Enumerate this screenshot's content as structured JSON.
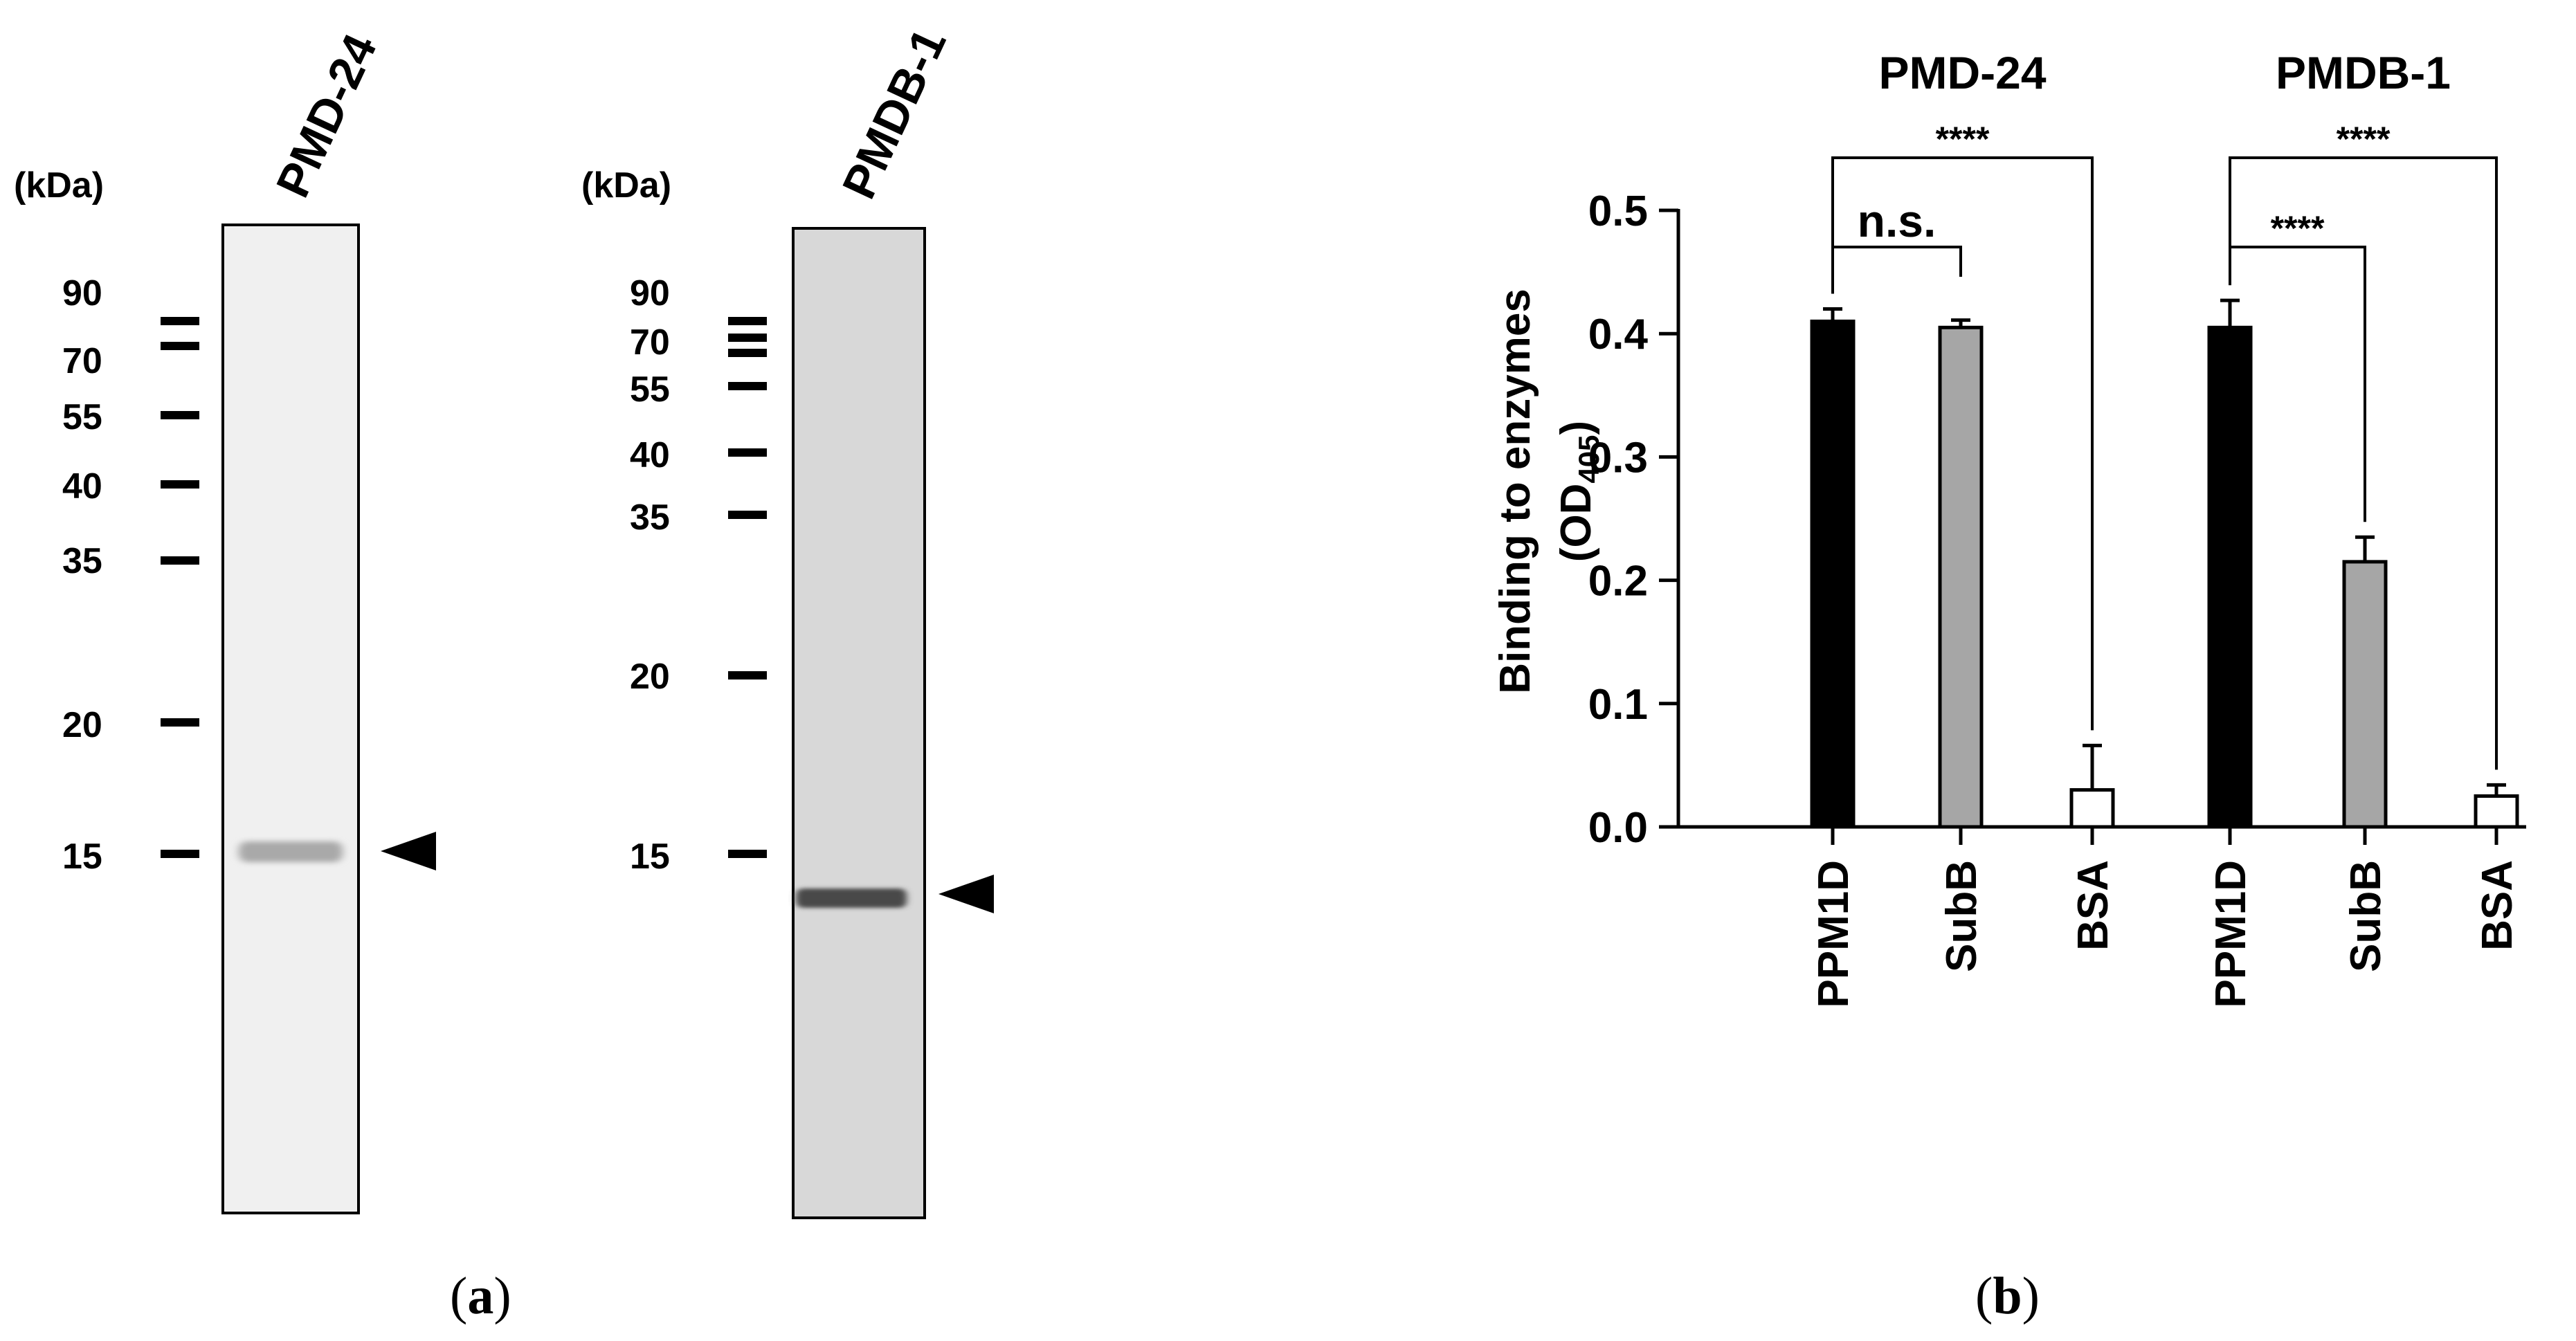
{
  "panel_a": {
    "caption_open": "(",
    "caption_letter": "a",
    "caption_close": ")",
    "gels": [
      {
        "lane_label": "PMD-24",
        "kda_label": "(kDa)",
        "markers": [
          "90",
          "70",
          "55",
          "40",
          "35",
          "20",
          "15"
        ],
        "band_color": "#a9a9a9",
        "background": "#f0f0f0"
      },
      {
        "lane_label": "PMDB-1",
        "kda_label": "(kDa)",
        "markers": [
          "90",
          "70",
          "55",
          "40",
          "35",
          "20",
          "15"
        ],
        "band_color": "#4a4a4a",
        "background": "#d8d8d8"
      }
    ]
  },
  "panel_b": {
    "caption_open": "(",
    "caption_letter": "b",
    "caption_close": ")"
  },
  "chart_data": {
    "type": "bar",
    "ylabel_main": "Binding to enzymes",
    "ylabel_unit_open": "(OD",
    "ylabel_unit_sub": "405",
    "ylabel_unit_close": ")",
    "ylim": [
      0,
      0.5
    ],
    "yticks": [
      "0.0",
      "0.1",
      "0.2",
      "0.3",
      "0.4",
      "0.5"
    ],
    "groups": [
      {
        "title": "PMD-24",
        "categories": [
          "PPM1D",
          "SubB",
          "BSA"
        ],
        "values": [
          0.41,
          0.405,
          0.03
        ],
        "errors": [
          0.01,
          0.006,
          0.036
        ],
        "colors": [
          "#000000",
          "#a6a6a6",
          "#ffffff"
        ],
        "significance": [
          {
            "label": "n.s.",
            "from": 0,
            "to": 1
          },
          {
            "label": "****",
            "from": 0,
            "to": 2
          }
        ]
      },
      {
        "title": "PMDB-1",
        "categories": [
          "PPM1D",
          "SubB",
          "BSA"
        ],
        "values": [
          0.405,
          0.215,
          0.025
        ],
        "errors": [
          0.022,
          0.02,
          0.009
        ],
        "colors": [
          "#000000",
          "#a6a6a6",
          "#ffffff"
        ],
        "significance": [
          {
            "label": "****",
            "from": 0,
            "to": 1
          },
          {
            "label": "****",
            "from": 0,
            "to": 2
          }
        ]
      }
    ]
  }
}
